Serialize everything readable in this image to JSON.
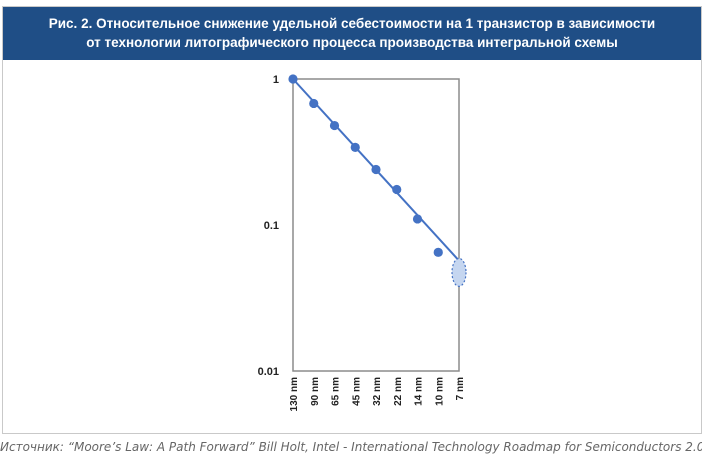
{
  "header": {
    "title_line1": "Рис. 2. Относительное снижение удельной себестоимости на 1 транзистор в зависимости",
    "title_line2": "от технологии литографического процесса производства интегральной схемы"
  },
  "source": "Источник: “Moore’s Law: A Path Forward” Bill Holt, Intel - International Technology Roadmap for Semiconductors 2.0",
  "colors": {
    "header_bg": "#1f4e86",
    "series": "#4472c4",
    "projection_fill": "#c5d6f0"
  },
  "chart_data": {
    "type": "scatter",
    "yscale": "log",
    "ylim": [
      0.01,
      1
    ],
    "y_ticks": [
      "1",
      "0.1",
      "0.01"
    ],
    "categories": [
      "130 nm",
      "90 nm",
      "65 nm",
      "45 nm",
      "32 nm",
      "22 nm",
      "14 nm",
      "10 nm",
      "7 nm"
    ],
    "series": [
      {
        "values": [
          1.0,
          0.68,
          0.48,
          0.34,
          0.24,
          0.175,
          0.11,
          0.065,
          null
        ]
      }
    ],
    "trendline": {
      "from": [
        "130 nm",
        1.0
      ],
      "to": [
        "7 nm",
        0.057
      ]
    },
    "projection": {
      "category": "7 nm",
      "value_range": [
        0.038,
        0.059
      ],
      "style": "dashed ellipse"
    },
    "grid": false,
    "legend": "none"
  }
}
